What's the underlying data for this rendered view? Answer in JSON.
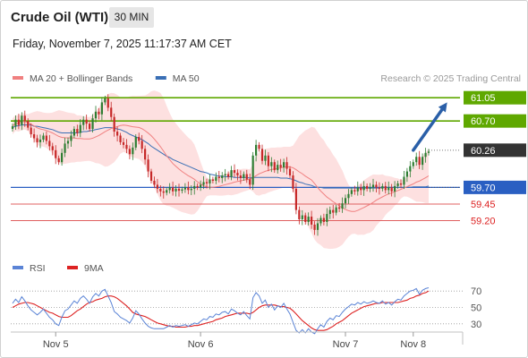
{
  "header": {
    "title": "Crude Oil (WTI)",
    "timeframe": "30 MIN",
    "timestamp": "Friday, November 7, 2025 11:17:37 AM CET"
  },
  "colors": {
    "bull": "#2e7d32",
    "bear": "#c62828",
    "band_fill": "#fde0e0",
    "ma20": "#f08080",
    "ma50": "#3a6fb5",
    "resistance": "#5fa800",
    "support": "#2a5fc2",
    "support_red": "#e06060",
    "current": "#333333",
    "rsi": "#5b84d6",
    "rsi_ma": "#dd2222",
    "arrow": "#2a5fa8"
  },
  "chart_data": [
    {
      "type": "candlestick",
      "legend_position": "top-left",
      "legend": [
        {
          "label": "MA 20 + Bollinger Bands",
          "color": "#f08080"
        },
        {
          "label": "MA 50",
          "color": "#3a6fb5"
        }
      ],
      "watermark": "Research © 2025 Trading Central",
      "ylim": [
        58.87,
        61.12
      ],
      "x_ticks": [
        {
          "label": "Nov 5",
          "index": 14
        },
        {
          "label": "Nov 6",
          "index": 61
        },
        {
          "label": "Nov 7",
          "index": 108
        },
        {
          "label": "Nov 8",
          "index": 130
        }
      ],
      "price_levels": [
        {
          "value": 61.05,
          "label": "61.05",
          "style": "resistance"
        },
        {
          "value": 60.7,
          "label": "60.70",
          "style": "resistance"
        },
        {
          "value": 60.26,
          "label": "60.26",
          "style": "current"
        },
        {
          "value": 59.7,
          "label": "59.70",
          "style": "pivot"
        },
        {
          "value": 59.45,
          "label": "59.45",
          "style": "support"
        },
        {
          "value": 59.2,
          "label": "59.20",
          "style": "support"
        }
      ],
      "arrow": {
        "from_index": 130,
        "from_value": 60.26,
        "to_index": 141,
        "to_value": 60.98
      },
      "close": [
        60.62,
        60.72,
        60.64,
        60.78,
        60.7,
        60.6,
        60.5,
        60.44,
        60.38,
        60.42,
        60.48,
        60.4,
        60.32,
        60.26,
        60.14,
        60.08,
        60.22,
        60.36,
        60.4,
        60.48,
        60.58,
        60.52,
        60.64,
        60.72,
        60.66,
        60.58,
        60.74,
        60.84,
        60.8,
        60.98,
        61.04,
        60.9,
        60.76,
        60.54,
        60.48,
        60.38,
        60.34,
        60.28,
        60.2,
        60.3,
        60.46,
        60.4,
        60.28,
        60.12,
        59.94,
        59.8,
        59.74,
        59.68,
        59.64,
        59.62,
        59.66,
        59.7,
        59.64,
        59.68,
        59.65,
        59.67,
        59.7,
        59.66,
        59.68,
        59.72,
        59.7,
        59.74,
        59.78,
        59.76,
        59.82,
        59.8,
        59.86,
        59.84,
        59.88,
        59.9,
        59.86,
        59.96,
        59.92,
        59.88,
        59.84,
        59.9,
        59.82,
        59.74,
        60.18,
        60.34,
        60.28,
        60.1,
        60.18,
        60.02,
        60.08,
        59.96,
        60.04,
        60.0,
        60.08,
        59.98,
        59.88,
        59.68,
        59.36,
        59.22,
        59.28,
        59.18,
        59.26,
        59.14,
        59.06,
        59.16,
        59.24,
        59.18,
        59.3,
        59.36,
        59.32,
        59.4,
        59.38,
        59.46,
        59.54,
        59.6,
        59.66,
        59.64,
        59.7,
        59.66,
        59.72,
        59.68,
        59.7,
        59.74,
        59.7,
        59.68,
        59.72,
        59.66,
        59.7,
        59.64,
        59.72,
        59.76,
        59.74,
        59.86,
        59.94,
        60.02,
        60.08,
        60.16,
        60.04,
        60.16,
        60.22,
        60.24
      ],
      "ma50": [
        60.6,
        60.62,
        60.63,
        60.64,
        60.64,
        60.64,
        60.64,
        60.62,
        60.62,
        60.61,
        60.6,
        60.59,
        60.58,
        60.57,
        60.55,
        60.53,
        60.52,
        60.52,
        60.52,
        60.52,
        60.52,
        60.52,
        60.53,
        60.54,
        60.54,
        60.55,
        60.56,
        60.57,
        60.58,
        60.59,
        60.6,
        60.6,
        60.6,
        60.59,
        60.58,
        60.57,
        60.55,
        60.53,
        60.5,
        60.48,
        60.46,
        60.44,
        60.42,
        60.39,
        60.36,
        60.32,
        60.29,
        60.26,
        60.23,
        60.2,
        60.17,
        60.15,
        60.12,
        60.1,
        60.08,
        60.06,
        60.04,
        60.02,
        60.0,
        59.98,
        59.96,
        59.94,
        59.93,
        59.92,
        59.9,
        59.89,
        59.88,
        59.87,
        59.87,
        59.86,
        59.86,
        59.86,
        59.85,
        59.85,
        59.85,
        59.85,
        59.85,
        59.84,
        59.85,
        59.85,
        59.85,
        59.85,
        59.85,
        59.85,
        59.85,
        59.85,
        59.85,
        59.84,
        59.84,
        59.84,
        59.83,
        59.82,
        59.8,
        59.78,
        59.77,
        59.75,
        59.74,
        59.73,
        59.71,
        59.7,
        59.7,
        59.69,
        59.69,
        59.69,
        59.69,
        59.69,
        59.69,
        59.69,
        59.69,
        59.69,
        59.69,
        59.69,
        59.69,
        59.69,
        59.69,
        59.69,
        59.69,
        59.69,
        59.69,
        59.69,
        59.7,
        59.7,
        59.7,
        59.7,
        59.7,
        59.7,
        59.7,
        59.7,
        59.7,
        59.7,
        59.71,
        59.71,
        59.71,
        59.71,
        59.71,
        59.72
      ]
    },
    {
      "type": "line",
      "legend": [
        {
          "label": "RSI",
          "color": "#5b84d6"
        },
        {
          "label": "9MA",
          "color": "#dd2222"
        }
      ],
      "ylim": [
        20,
        80
      ],
      "y_ticks": [
        70,
        50,
        30
      ],
      "rsi": [
        55,
        60,
        56,
        63,
        58,
        52,
        47,
        44,
        41,
        44,
        48,
        43,
        38,
        35,
        30,
        28,
        38,
        46,
        48,
        53,
        58,
        55,
        61,
        64,
        60,
        55,
        63,
        67,
        64,
        70,
        72,
        64,
        56,
        45,
        42,
        38,
        36,
        34,
        31,
        37,
        46,
        42,
        36,
        31,
        27,
        25,
        24,
        24,
        24,
        24,
        26,
        28,
        26,
        28,
        27,
        28,
        29,
        27,
        29,
        31,
        30,
        33,
        36,
        35,
        39,
        38,
        42,
        41,
        44,
        45,
        42,
        48,
        46,
        43,
        41,
        45,
        40,
        36,
        62,
        68,
        64,
        55,
        59,
        50,
        54,
        47,
        52,
        50,
        55,
        48,
        42,
        32,
        22,
        19,
        23,
        19,
        24,
        20,
        18,
        24,
        29,
        26,
        33,
        37,
        35,
        40,
        39,
        44,
        48,
        51,
        54,
        53,
        56,
        54,
        57,
        55,
        56,
        58,
        56,
        55,
        58,
        54,
        56,
        53,
        57,
        60,
        59,
        64,
        67,
        70,
        71,
        73,
        66,
        71,
        73,
        74
      ],
      "ma9": [
        50,
        52,
        54,
        55,
        56,
        56,
        55,
        54,
        52,
        50,
        48,
        46,
        44,
        43,
        41,
        39,
        38,
        38,
        38,
        40,
        43,
        46,
        48,
        51,
        54,
        56,
        57,
        59,
        60,
        61,
        63,
        64,
        64,
        63,
        61,
        58,
        55,
        52,
        48,
        44,
        42,
        41,
        40,
        39,
        37,
        35,
        33,
        31,
        30,
        29,
        28,
        27,
        27,
        26,
        26,
        26,
        26,
        27,
        27,
        28,
        28,
        29,
        30,
        31,
        32,
        33,
        35,
        36,
        37,
        39,
        40,
        41,
        42,
        43,
        43,
        43,
        43,
        42,
        44,
        47,
        50,
        52,
        53,
        53,
        53,
        53,
        52,
        51,
        51,
        50,
        49,
        46,
        42,
        38,
        34,
        31,
        28,
        25,
        23,
        22,
        22,
        22,
        23,
        25,
        27,
        30,
        32,
        34,
        37,
        40,
        43,
        45,
        47,
        49,
        51,
        52,
        53,
        54,
        55,
        55,
        56,
        56,
        56,
        56,
        56,
        56,
        57,
        58,
        59,
        61,
        62,
        64,
        65,
        67,
        68,
        70
      ]
    }
  ]
}
